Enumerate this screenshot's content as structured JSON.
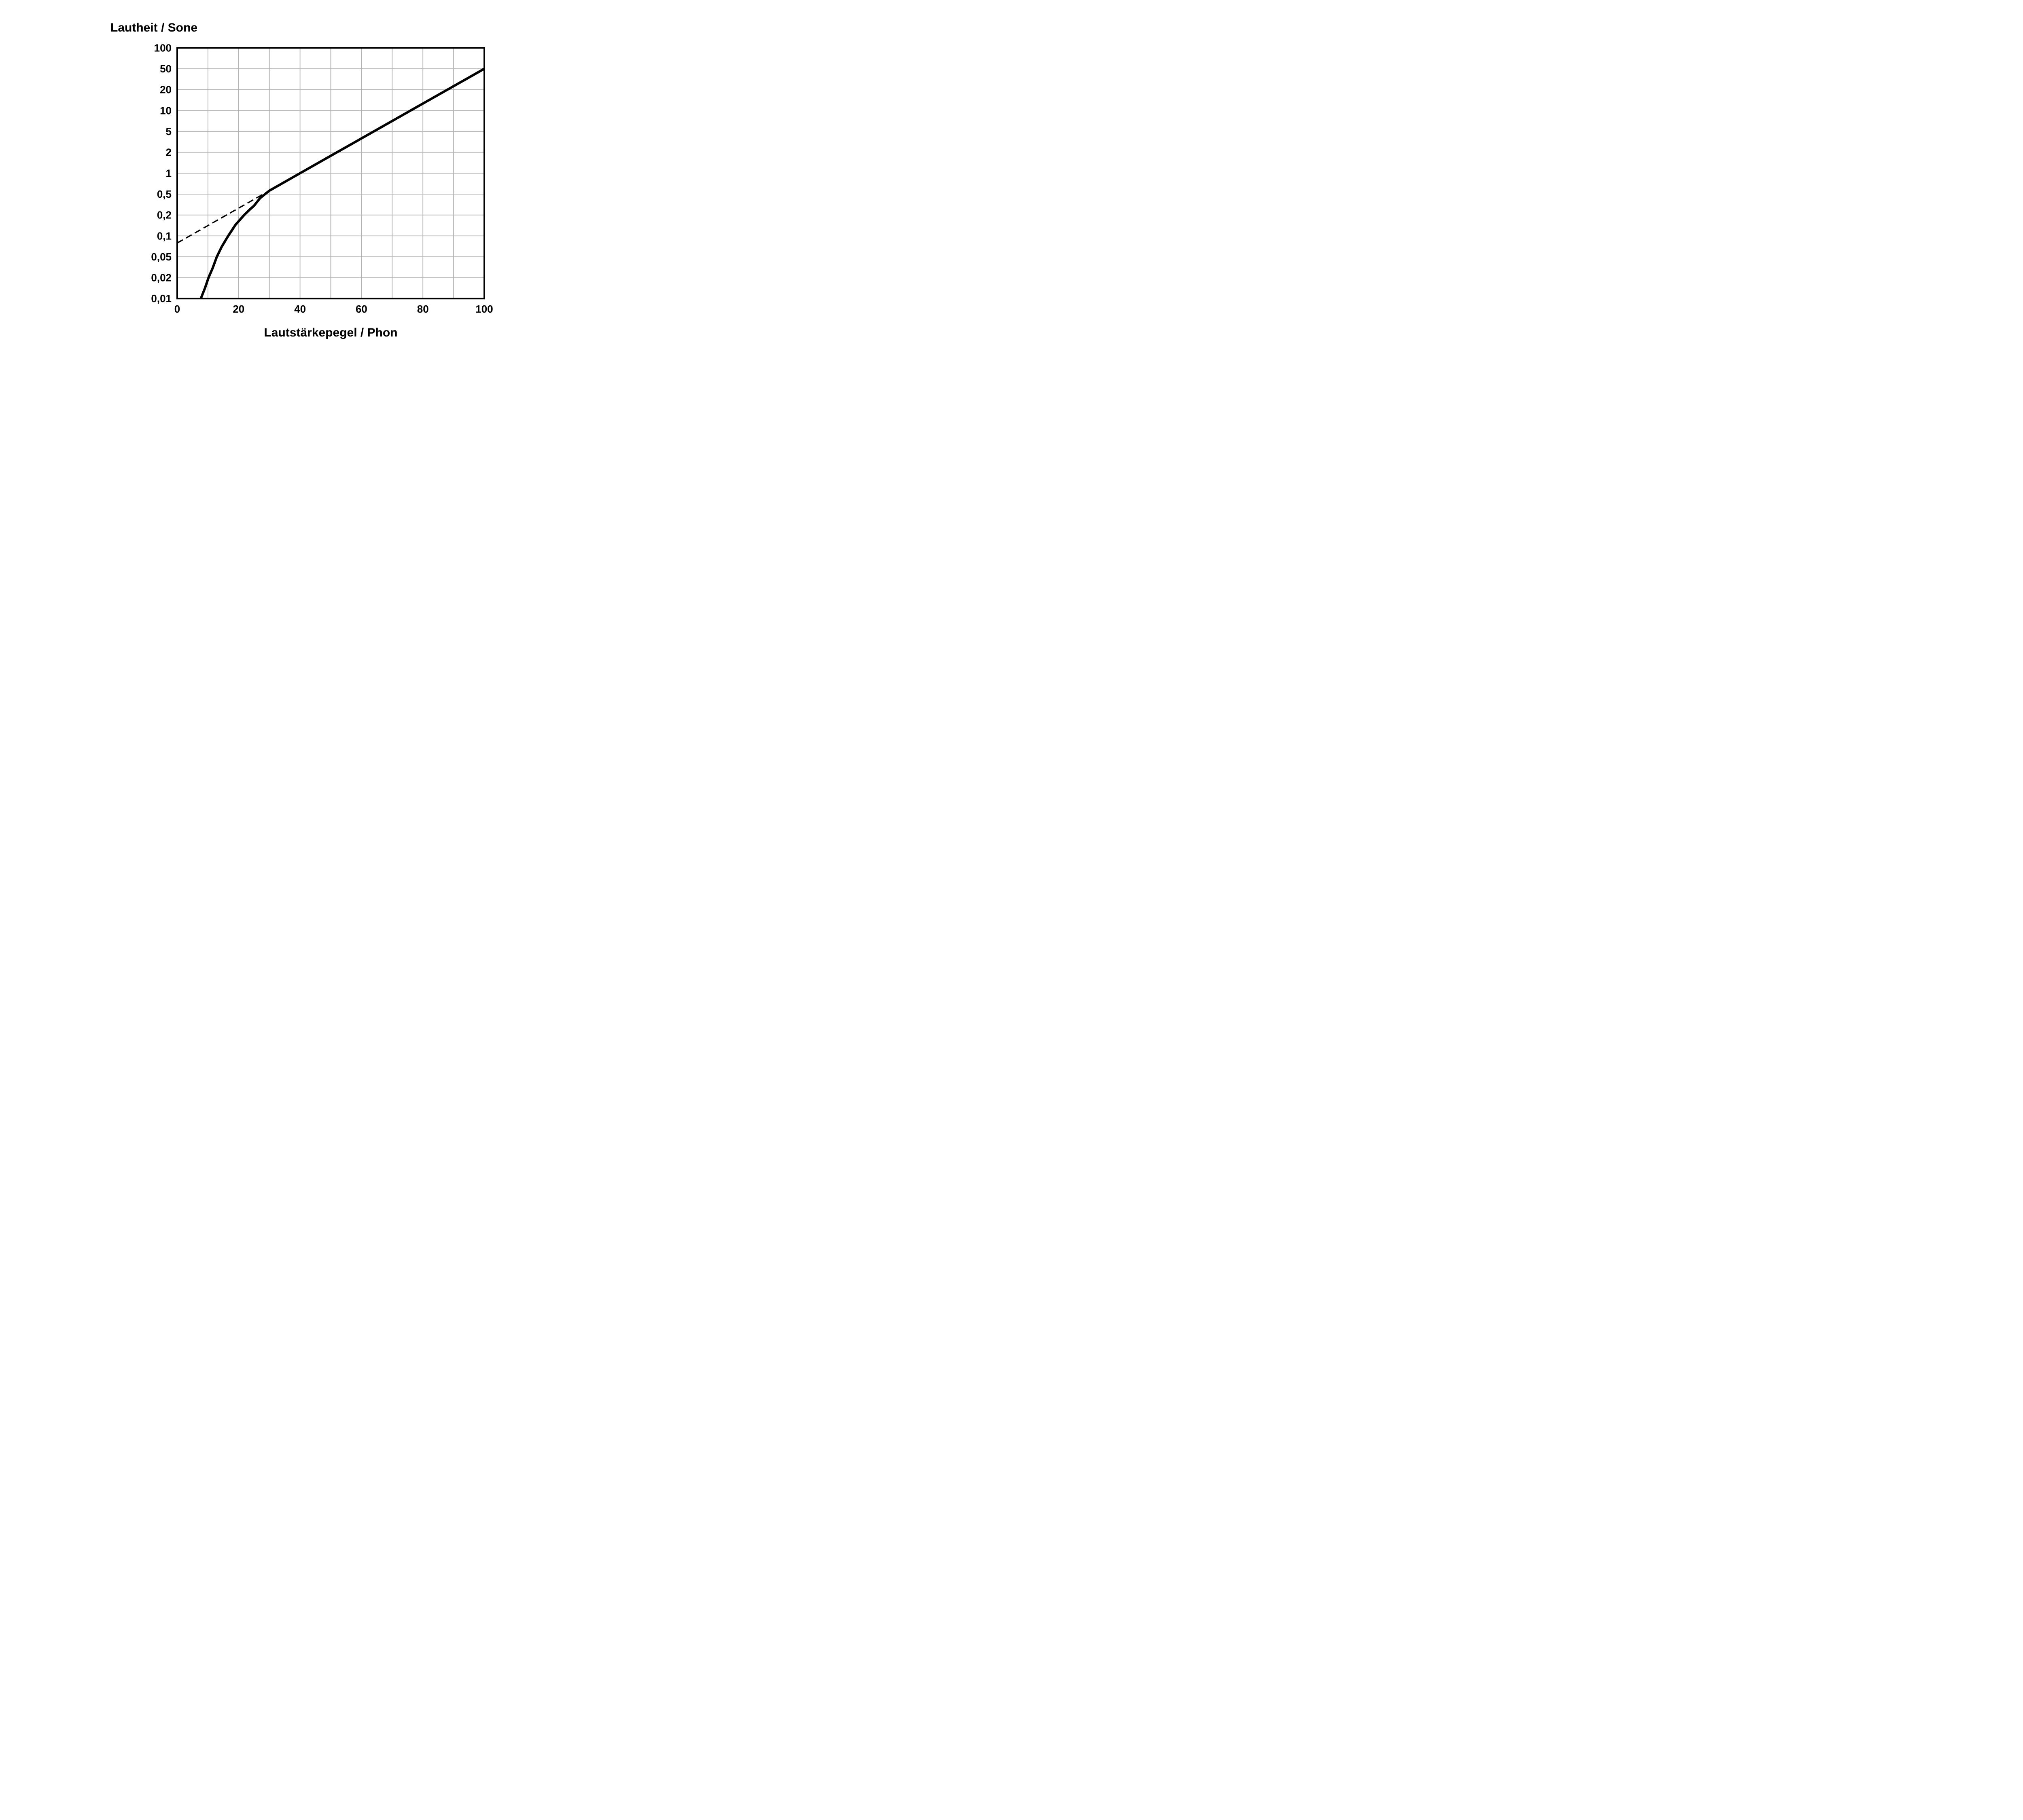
{
  "page": {
    "background": "#ffffff"
  },
  "chart_data": {
    "type": "line",
    "title": "",
    "y_axis": {
      "label": "Lautheit / Sone",
      "scale": "log-1-2-5-equal-tick-spacing",
      "range": [
        0.01,
        100
      ],
      "tick_values": [
        0.01,
        0.02,
        0.05,
        0.1,
        0.2,
        0.5,
        1,
        2,
        5,
        10,
        20,
        50,
        100
      ],
      "tick_labels": [
        "0,01",
        "0,02",
        "0,05",
        "0,1",
        "0,2",
        "0,5",
        "1",
        "2",
        "5",
        "10",
        "20",
        "50",
        "100"
      ]
    },
    "x_axis": {
      "label": "Lautstärkepegel / Phon",
      "min": 0,
      "max": 100,
      "grid_step": 10,
      "tick_values": [
        0,
        20,
        40,
        60,
        80,
        100
      ],
      "tick_labels": [
        "0",
        "20",
        "40",
        "60",
        "80",
        "100"
      ]
    },
    "grid": true,
    "legend_position": "none",
    "series": [
      {
        "id": "solid",
        "style": "solid",
        "points": [
          [
            7.7,
            0.01
          ],
          [
            9,
            0.014
          ],
          [
            10.2,
            0.02
          ],
          [
            11.5,
            0.03
          ],
          [
            12.9,
            0.05
          ],
          [
            14.5,
            0.07
          ],
          [
            16.6,
            0.1
          ],
          [
            19,
            0.145
          ],
          [
            21.8,
            0.2
          ],
          [
            23.5,
            0.25
          ],
          [
            25,
            0.3
          ],
          [
            27,
            0.42
          ],
          [
            30,
            0.56
          ],
          [
            40,
            1
          ],
          [
            52,
            2
          ],
          [
            64,
            5
          ],
          [
            76,
            10
          ],
          [
            88,
            20
          ],
          [
            100,
            50
          ]
        ]
      },
      {
        "id": "dashed",
        "style": "dashed",
        "points": [
          [
            0,
            0.079
          ],
          [
            30,
            0.56
          ]
        ]
      }
    ],
    "colors": {
      "curve": "#000000",
      "dashed_line": "#000000",
      "grid": "#b3b3b3",
      "border": "#000000",
      "text": "#000000",
      "background": "#ffffff"
    }
  }
}
